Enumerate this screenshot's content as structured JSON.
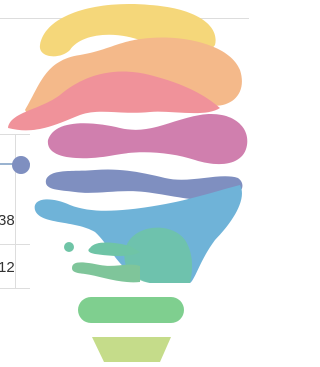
{
  "table": {
    "rows": [
      [
        "38"
      ],
      [
        "12"
      ]
    ]
  }
}
